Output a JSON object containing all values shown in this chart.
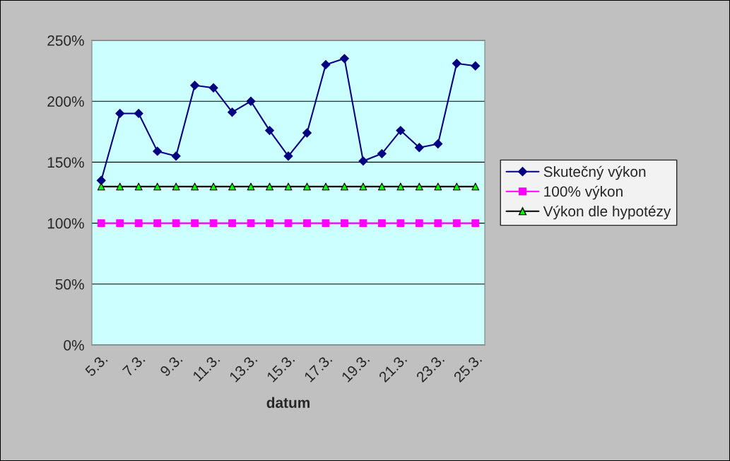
{
  "chart_data": {
    "type": "line",
    "xlabel": "datum",
    "categories": [
      "5.3.",
      null,
      "7.3.",
      null,
      "9.3.",
      null,
      "11.3.",
      null,
      "13.3.",
      null,
      "15.3.",
      null,
      "17.3.",
      null,
      "19.3.",
      null,
      "21.3.",
      null,
      "23.3.",
      null,
      "25.3."
    ],
    "series": [
      {
        "name": "Skutečný výkon",
        "color": "#000080",
        "marker": "diamond",
        "values": [
          135,
          190,
          190,
          159,
          155,
          213,
          211,
          191,
          200,
          176,
          155,
          174,
          230,
          235,
          151,
          157,
          176,
          162,
          165,
          231,
          229
        ]
      },
      {
        "name": "100% výkon",
        "color": "#ff00ff",
        "marker": "square",
        "values": [
          100,
          100,
          100,
          100,
          100,
          100,
          100,
          100,
          100,
          100,
          100,
          100,
          100,
          100,
          100,
          100,
          100,
          100,
          100,
          100,
          100
        ]
      },
      {
        "name": "Výkon dle hypotézy",
        "color": "#000000",
        "colors": [
          "#00ff00",
          "#00ff00",
          "#00ff00",
          "#00ff00",
          "#00ff00",
          "#00ff00",
          "#00ff00",
          "#00ff00",
          "#00ff00",
          "#00ff00",
          "#00ff00",
          "#00ff00",
          "#00ff00",
          "#00ff00",
          "#00ff00",
          "#00ff00",
          "#00ff00",
          "#00ff00",
          "#00ff00",
          "#00ff00",
          "#00ff00"
        ],
        "marker": "triangle",
        "values": [
          130,
          130,
          130,
          130,
          130,
          130,
          130,
          130,
          130,
          130,
          130,
          130,
          130,
          130,
          130,
          130,
          130,
          130,
          130,
          130,
          130
        ]
      }
    ],
    "ylim": [
      0,
      250
    ],
    "yticks": [
      {
        "value": 0,
        "label": "0%"
      },
      {
        "value": 50,
        "label": "50%"
      },
      {
        "value": 100,
        "label": "100%"
      },
      {
        "value": 150,
        "label": "150%"
      },
      {
        "value": 200,
        "label": "200%"
      },
      {
        "value": 250,
        "label": "250%"
      }
    ],
    "grid": "y",
    "legend": "right"
  }
}
